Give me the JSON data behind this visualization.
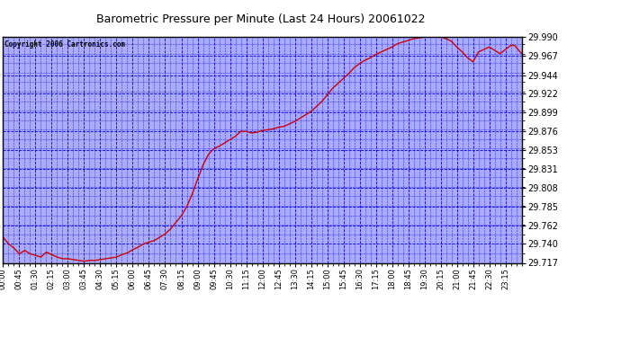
{
  "title": "Barometric Pressure per Minute (Last 24 Hours) 20061022",
  "copyright": "Copyright 2006 Cartronics.com",
  "plot_bg_color": "#aaaaff",
  "line_color": "#cc0000",
  "grid_color": "#0000dd",
  "y_ticks": [
    29.717,
    29.74,
    29.762,
    29.785,
    29.808,
    29.831,
    29.853,
    29.876,
    29.899,
    29.922,
    29.944,
    29.967,
    29.99
  ],
  "y_min": 29.717,
  "y_max": 29.99,
  "x_labels": [
    "00:00",
    "00:45",
    "01:30",
    "02:15",
    "03:00",
    "03:45",
    "04:30",
    "05:15",
    "06:00",
    "06:45",
    "07:30",
    "08:15",
    "09:00",
    "09:45",
    "10:30",
    "11:15",
    "12:00",
    "12:45",
    "13:30",
    "14:15",
    "15:00",
    "15:45",
    "16:30",
    "17:15",
    "18:00",
    "18:45",
    "19:30",
    "20:15",
    "21:00",
    "21:45",
    "22:30",
    "23:15"
  ],
  "data_points": [
    [
      0,
      29.748
    ],
    [
      15,
      29.74
    ],
    [
      30,
      29.735
    ],
    [
      45,
      29.728
    ],
    [
      60,
      29.732
    ],
    [
      75,
      29.728
    ],
    [
      90,
      29.726
    ],
    [
      105,
      29.724
    ],
    [
      120,
      29.73
    ],
    [
      135,
      29.727
    ],
    [
      150,
      29.724
    ],
    [
      165,
      29.722
    ],
    [
      180,
      29.722
    ],
    [
      195,
      29.721
    ],
    [
      210,
      29.72
    ],
    [
      225,
      29.719
    ],
    [
      240,
      29.72
    ],
    [
      255,
      29.72
    ],
    [
      270,
      29.721
    ],
    [
      285,
      29.722
    ],
    [
      300,
      29.723
    ],
    [
      315,
      29.724
    ],
    [
      330,
      29.727
    ],
    [
      345,
      29.729
    ],
    [
      360,
      29.733
    ],
    [
      375,
      29.736
    ],
    [
      390,
      29.74
    ],
    [
      405,
      29.742
    ],
    [
      420,
      29.744
    ],
    [
      435,
      29.748
    ],
    [
      450,
      29.752
    ],
    [
      465,
      29.758
    ],
    [
      480,
      29.766
    ],
    [
      495,
      29.774
    ],
    [
      510,
      29.785
    ],
    [
      525,
      29.8
    ],
    [
      540,
      29.818
    ],
    [
      555,
      29.835
    ],
    [
      570,
      29.848
    ],
    [
      585,
      29.855
    ],
    [
      600,
      29.858
    ],
    [
      615,
      29.862
    ],
    [
      630,
      29.866
    ],
    [
      645,
      29.87
    ],
    [
      660,
      29.876
    ],
    [
      675,
      29.876
    ],
    [
      690,
      29.874
    ],
    [
      705,
      29.875
    ],
    [
      720,
      29.877
    ],
    [
      735,
      29.878
    ],
    [
      750,
      29.879
    ],
    [
      765,
      29.881
    ],
    [
      780,
      29.882
    ],
    [
      795,
      29.885
    ],
    [
      810,
      29.888
    ],
    [
      825,
      29.892
    ],
    [
      840,
      29.896
    ],
    [
      855,
      29.9
    ],
    [
      870,
      29.906
    ],
    [
      885,
      29.912
    ],
    [
      900,
      29.92
    ],
    [
      915,
      29.928
    ],
    [
      930,
      29.934
    ],
    [
      945,
      29.94
    ],
    [
      960,
      29.946
    ],
    [
      975,
      29.953
    ],
    [
      990,
      29.958
    ],
    [
      1005,
      29.962
    ],
    [
      1020,
      29.965
    ],
    [
      1035,
      29.969
    ],
    [
      1050,
      29.972
    ],
    [
      1065,
      29.975
    ],
    [
      1080,
      29.978
    ],
    [
      1095,
      29.982
    ],
    [
      1110,
      29.984
    ],
    [
      1125,
      29.986
    ],
    [
      1140,
      29.988
    ],
    [
      1155,
      29.989
    ],
    [
      1170,
      29.99
    ],
    [
      1185,
      29.991
    ],
    [
      1200,
      29.991
    ],
    [
      1215,
      29.99
    ],
    [
      1230,
      29.988
    ],
    [
      1245,
      29.985
    ],
    [
      1260,
      29.978
    ],
    [
      1275,
      29.972
    ],
    [
      1290,
      29.965
    ],
    [
      1305,
      29.96
    ],
    [
      1320,
      29.972
    ],
    [
      1335,
      29.975
    ],
    [
      1350,
      29.978
    ],
    [
      1365,
      29.974
    ],
    [
      1380,
      29.97
    ],
    [
      1395,
      29.975
    ],
    [
      1410,
      29.98
    ],
    [
      1420,
      29.98
    ],
    [
      1430,
      29.975
    ],
    [
      1440,
      29.97
    ]
  ]
}
